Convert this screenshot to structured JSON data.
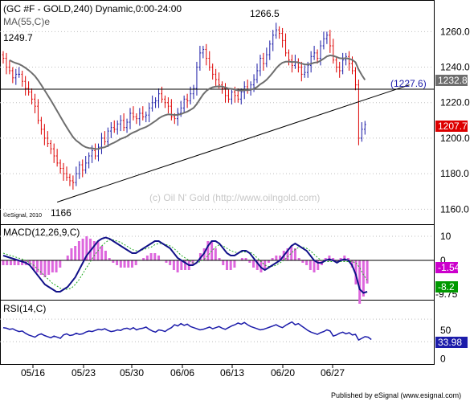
{
  "header": {
    "title": "(GC #F - GOLD,240) Dynamic,0:00-24:00",
    "ma_label": "MA(55,C)e"
  },
  "price_panel": {
    "price_range": [
      1152,
      1276
    ],
    "ticks": [
      "1260.0",
      "1240.0",
      "1220.0",
      "1200.0",
      "1180.0",
      "1160.0"
    ],
    "annotations": {
      "high_label": "1266.5",
      "left_label": "1249.7",
      "low_label": "1166",
      "level_label": "(1227.6)",
      "watermark": "(c) Oil N' Gold (http://www.oilngold.com)",
      "copyright": "©eSignal, 2010"
    },
    "horizontal_level": 1227.6,
    "trendline": {
      "from": [
        0,
        1164
      ],
      "to": [
        116,
        1230
      ]
    },
    "ma_badge": {
      "label": "1232.8",
      "color": "#6e6e6e"
    },
    "last_badge": {
      "label": "1207.7",
      "color": "#dd0000"
    },
    "closes": [
      1245,
      1240,
      1238,
      1234,
      1236,
      1236,
      1232,
      1228,
      1226,
      1222,
      1218,
      1210,
      1205,
      1200,
      1197,
      1194,
      1190,
      1186,
      1183,
      1180,
      1178,
      1176,
      1175,
      1180,
      1185,
      1182,
      1186,
      1190,
      1193,
      1190,
      1195,
      1200,
      1198,
      1204,
      1206,
      1205,
      1208,
      1210,
      1206,
      1209,
      1214,
      1212,
      1211,
      1214,
      1212,
      1213,
      1217,
      1220,
      1221,
      1225,
      1222,
      1220,
      1218,
      1212,
      1211,
      1214,
      1217,
      1222,
      1221,
      1225,
      1228,
      1240,
      1248,
      1250,
      1245,
      1240,
      1236,
      1233,
      1230,
      1228,
      1224,
      1222,
      1226,
      1224,
      1222,
      1226,
      1229,
      1227,
      1230,
      1233,
      1238,
      1245,
      1242,
      1247,
      1253,
      1258,
      1261,
      1259,
      1255,
      1248,
      1244,
      1241,
      1243,
      1240,
      1236,
      1237,
      1241,
      1246,
      1248,
      1245,
      1252,
      1256,
      1258,
      1252,
      1244,
      1240,
      1238,
      1244,
      1246,
      1242,
      1238,
      1230,
      1200,
      1205,
      1207.7
    ]
  },
  "macd_panel": {
    "label": "MACD(12,26,9,C)",
    "range": [
      -16,
      14
    ],
    "ticks": [
      "10",
      "0"
    ],
    "macd_badge": {
      "label": "-1.54",
      "color": "#cc00cc"
    },
    "signal_badge": {
      "label": "-8.2",
      "color": "#009900"
    },
    "extra_label": "-9.75",
    "macd": [
      2,
      1.5,
      1,
      0.5,
      0,
      -0.5,
      -1,
      -2,
      -4,
      -6,
      -8,
      -10,
      -11,
      -12,
      -13,
      -13,
      -12,
      -11,
      -9,
      -7,
      -4,
      -1,
      2,
      4,
      6,
      8,
      9,
      9.5,
      9,
      8,
      7,
      6,
      5,
      4,
      3,
      3,
      4,
      5,
      6,
      7,
      8,
      8,
      7,
      6,
      5,
      3,
      1,
      0,
      -1,
      -2,
      -2,
      -1,
      1,
      3,
      6,
      8,
      8,
      7,
      5,
      3,
      2,
      2,
      3,
      4,
      4,
      3,
      1,
      -1,
      -3,
      -4,
      -3,
      -2,
      -1,
      0,
      2,
      4,
      6,
      7,
      6,
      5,
      4,
      2,
      0,
      -1,
      -1,
      0,
      0.5,
      0,
      -1,
      0,
      0.5,
      0,
      -2,
      -6,
      -12,
      -13.5,
      -13
    ],
    "signal": [
      3,
      2.5,
      2,
      1.5,
      1,
      0.5,
      0,
      -1,
      -2,
      -3.5,
      -5,
      -6.5,
      -8,
      -9.5,
      -10.5,
      -11.5,
      -12,
      -12,
      -11.5,
      -10,
      -8,
      -5.5,
      -3,
      -0.5,
      2,
      4,
      6,
      7.5,
      8.5,
      8.5,
      8,
      7.5,
      6.5,
      5.5,
      4.5,
      4,
      4,
      4.5,
      5,
      5.5,
      6.5,
      7,
      7,
      6.5,
      6,
      5,
      3.5,
      2,
      1,
      0,
      -1,
      -1,
      -0.5,
      0.5,
      2,
      4,
      5.5,
      6.5,
      6,
      5,
      4,
      3.5,
      3,
      3.5,
      3.5,
      3.5,
      2.5,
      1,
      -0.5,
      -2,
      -2.5,
      -2.5,
      -2,
      -1,
      0,
      1.5,
      3,
      4.5,
      5.5,
      5.5,
      5,
      4,
      2.5,
      1,
      0,
      -0.5,
      -0.5,
      -0.5,
      -0.5,
      -0.5,
      -0.5,
      -0.5,
      -0.5,
      -1,
      -3,
      -6,
      -8.2,
      -9
    ]
  },
  "rsi_panel": {
    "label": "RSI(14,C)",
    "range": [
      -8,
      100
    ],
    "ticks": [
      "50",
      "0"
    ],
    "overbought": 70,
    "oversold": 30,
    "rsi_badge": {
      "label": "33.98",
      "color": "#1c1caa"
    },
    "values": [
      55,
      54,
      52,
      53,
      50,
      48,
      49,
      45,
      42,
      40,
      38,
      42,
      44,
      41,
      39,
      37,
      40,
      38,
      36,
      42,
      44,
      41,
      42,
      45,
      43,
      44,
      47,
      49,
      48,
      50,
      52,
      51,
      53,
      50,
      48,
      49,
      51,
      50,
      53,
      54,
      52,
      55,
      51,
      53,
      54,
      56,
      52,
      49,
      47,
      51,
      50,
      48,
      52,
      55,
      60,
      58,
      62,
      59,
      61,
      57,
      55,
      53,
      51,
      52,
      54,
      56,
      53,
      55,
      57,
      54,
      52,
      55,
      58,
      60,
      63,
      61,
      64,
      60,
      57,
      55,
      53,
      51,
      52,
      54,
      56,
      58,
      60,
      57,
      55,
      59,
      62,
      65,
      60,
      62,
      58,
      54,
      50,
      47,
      45,
      43,
      46,
      48,
      51,
      49,
      40,
      42,
      45,
      47,
      44,
      46,
      42,
      43,
      33,
      36,
      39,
      38,
      33.98
    ]
  },
  "x_axis": {
    "labels": [
      "05/16",
      "05/23",
      "05/30",
      "06/06",
      "06/13",
      "06/20",
      "06/27"
    ],
    "label_bars": [
      7,
      18,
      29,
      40,
      51,
      63,
      74
    ]
  },
  "footer": {
    "published_by": "Published by eSignal (www.esignal.com)"
  }
}
